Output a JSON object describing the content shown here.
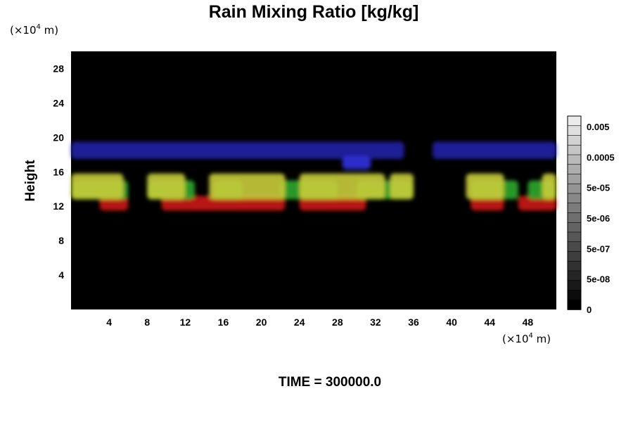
{
  "chart_data": {
    "type": "heatmap",
    "title": "Rain Mixing Ratio [kg/kg]",
    "ylabel": "Height",
    "x_unit": {
      "prefix": "(×10",
      "exp": "4",
      "suffix": " m)"
    },
    "y_unit": {
      "prefix": "(×10",
      "exp": "4",
      "suffix": " m)"
    },
    "x_ticks": [
      4,
      8,
      12,
      16,
      20,
      24,
      28,
      32,
      36,
      40,
      44,
      48
    ],
    "y_ticks": [
      4,
      8,
      12,
      16,
      20,
      24,
      28
    ],
    "xlim": [
      0,
      51
    ],
    "ylim": [
      0,
      30
    ],
    "background_color": "#000000",
    "colorbar": {
      "labels": [
        "0.005",
        "0.0005",
        "5e-05",
        "5e-06",
        "5e-07",
        "5e-08",
        "0"
      ],
      "levels": 20
    },
    "features": [
      {
        "color": "#2a2ac8",
        "band": [
          17.5,
          19.5
        ],
        "segments": [
          [
            0,
            35
          ],
          [
            38,
            51
          ]
        ]
      },
      {
        "color": "#3232e0",
        "band": [
          16.3,
          17.8
        ],
        "segments": [
          [
            28.5,
            31.5
          ]
        ]
      },
      {
        "color": "#cc1a1a",
        "band": [
          11.5,
          13.2
        ],
        "segments": [
          [
            3,
            6
          ],
          [
            9.5,
            22.5
          ],
          [
            24,
            31
          ],
          [
            42,
            45.5
          ],
          [
            47,
            51
          ]
        ]
      },
      {
        "color": "#2ea82e",
        "band": [
          12.8,
          15
        ],
        "segments": [
          [
            0,
            6
          ],
          [
            8,
            13
          ],
          [
            15,
            18
          ],
          [
            22,
            28
          ],
          [
            30,
            36
          ],
          [
            42,
            47
          ],
          [
            48,
            51
          ]
        ]
      },
      {
        "color": "#c8cc3a",
        "band": [
          12.8,
          15.8
        ],
        "segments": [
          [
            0,
            5.5
          ],
          [
            8,
            12
          ],
          [
            14.5,
            22.5
          ],
          [
            24,
            33
          ],
          [
            33.5,
            36
          ],
          [
            41.5,
            45.5
          ],
          [
            49.5,
            51
          ]
        ]
      }
    ],
    "annotation": "TIME = 300000.0"
  }
}
